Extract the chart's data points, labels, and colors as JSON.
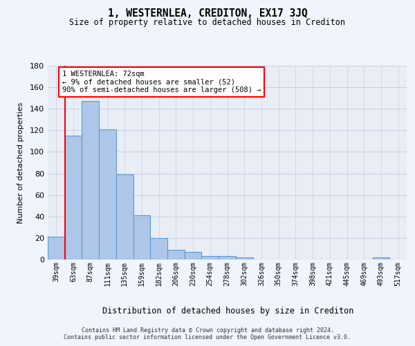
{
  "title": "1, WESTERNLEA, CREDITON, EX17 3JQ",
  "subtitle": "Size of property relative to detached houses in Crediton",
  "xlabel": "Distribution of detached houses by size in Crediton",
  "ylabel": "Number of detached properties",
  "footer_line1": "Contains HM Land Registry data © Crown copyright and database right 2024.",
  "footer_line2": "Contains public sector information licensed under the Open Government Licence v3.0.",
  "bar_labels": [
    "39sqm",
    "63sqm",
    "87sqm",
    "111sqm",
    "135sqm",
    "159sqm",
    "182sqm",
    "206sqm",
    "230sqm",
    "254sqm",
    "278sqm",
    "302sqm",
    "326sqm",
    "350sqm",
    "374sqm",
    "398sqm",
    "421sqm",
    "445sqm",
    "469sqm",
    "493sqm",
    "517sqm"
  ],
  "bar_values": [
    21,
    115,
    147,
    121,
    79,
    41,
    20,
    9,
    7,
    3,
    3,
    2,
    0,
    0,
    0,
    0,
    0,
    0,
    0,
    2,
    0
  ],
  "bar_color": "#aec6e8",
  "bar_edge_color": "#5b9bd5",
  "ylim": [
    0,
    180
  ],
  "yticks": [
    0,
    20,
    40,
    60,
    80,
    100,
    120,
    140,
    160,
    180
  ],
  "red_line_x": 1.5,
  "annotation_text": "1 WESTERNLEA: 72sqm\n← 9% of detached houses are smaller (52)\n90% of semi-detached houses are larger (508) →",
  "background_color": "#f0f4fc",
  "plot_background": "#e8edf6",
  "grid_color": "#c8cfe0"
}
